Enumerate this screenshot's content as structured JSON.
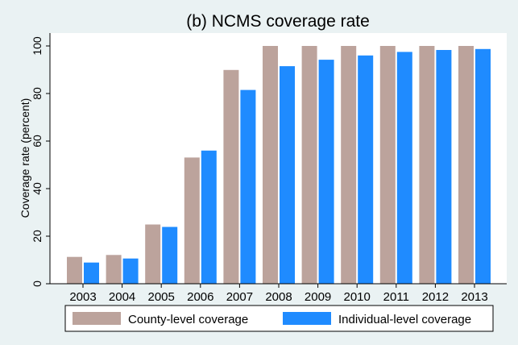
{
  "colors": {
    "county": "#bca39c",
    "individual": "#1f8bff",
    "background": "#eaf2f3",
    "plot_background": "#ffffff"
  },
  "chart_data": {
    "type": "bar",
    "title": "(b) NCMS coverage rate",
    "xlabel": "",
    "ylabel": "Coverage rate (percent)",
    "ylim": [
      0,
      100
    ],
    "yticks": [
      0,
      20,
      40,
      60,
      80,
      100
    ],
    "grid": false,
    "legend_position": "bottom",
    "categories": [
      "2003",
      "2004",
      "2005",
      "2006",
      "2007",
      "2008",
      "2009",
      "2010",
      "2011",
      "2012",
      "2013"
    ],
    "series": [
      {
        "name": "County-level coverage",
        "color": "#bca39c",
        "values": [
          11.3,
          12.1,
          24.9,
          53.1,
          89.9,
          100,
          100,
          100,
          100,
          100,
          100
        ]
      },
      {
        "name": "Individual-level coverage",
        "color": "#1f8bff",
        "values": [
          8.9,
          10.6,
          23.9,
          56.0,
          81.5,
          91.5,
          94.2,
          96.0,
          97.5,
          98.3,
          98.7
        ]
      }
    ]
  }
}
